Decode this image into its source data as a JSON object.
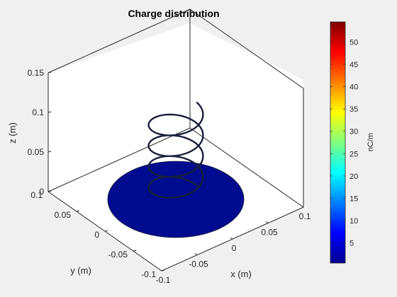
{
  "chart_data": {
    "type": "3d-surface",
    "title": "Charge distribution",
    "xlabel": "x (m)",
    "ylabel": "y (m)",
    "zlabel": "z (m)",
    "xlim": [
      -0.1,
      0.1
    ],
    "ylim": [
      -0.1,
      0.1
    ],
    "zlim": [
      0,
      0.15
    ],
    "x_ticks": [
      "-0.1",
      "-0.05",
      "0",
      "0.05",
      "0.1"
    ],
    "y_ticks": [
      "-0.1",
      "-0.05",
      "0",
      "0.05",
      "0.1"
    ],
    "z_ticks": [
      "0",
      "0.05",
      "0.1",
      "0.15"
    ],
    "grid": false,
    "box": true,
    "colormap": "jet",
    "colorbar": {
      "label": "nC/m",
      "range": [
        0.5,
        54.5
      ],
      "ticks": [
        "5",
        "10",
        "15",
        "20",
        "25",
        "30",
        "35",
        "40",
        "45",
        "50"
      ],
      "tick_values": [
        5,
        10,
        15,
        20,
        25,
        30,
        35,
        40,
        45,
        50
      ]
    },
    "series": [
      {
        "shape": "disk",
        "center": [
          0,
          0,
          0
        ],
        "radius": 0.075,
        "color": "#000c8f"
      },
      {
        "shape": "helix",
        "center": [
          0,
          0
        ],
        "radius": 0.03,
        "z_start": 0.005,
        "z_end": 0.11,
        "turns": 4,
        "color": "#1a1f3d"
      }
    ]
  }
}
